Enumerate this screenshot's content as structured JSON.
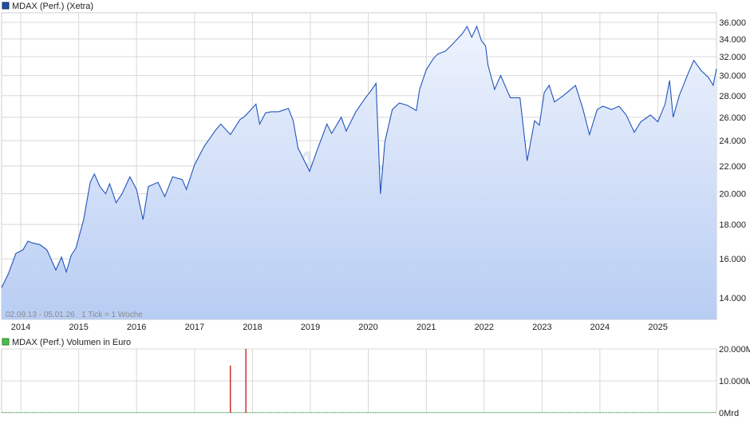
{
  "colors": {
    "price_line": "#2255bb",
    "area_top": "#eef3fd",
    "area_bottom": "#b8cdf3",
    "grid": "#d8d8d8",
    "volume_bar": "#cc2222",
    "volume_base": "#33aa33",
    "legend_price_box": "#1f4f9e",
    "legend_volume_box": "#4cbb4c",
    "watermark": "#c9d6ea"
  },
  "chart_data": [
    {
      "type": "area",
      "title": "MDAX (Perf.) (Xetra)",
      "caption": "02.09.13 - 05.01.26   1 Tick = 1 Woche",
      "watermark": "ARIVA.DE",
      "x_range": [
        "2013-09-02",
        "2026-01-05"
      ],
      "year_labels": [
        "2014",
        "2015",
        "2016",
        "2017",
        "2018",
        "2019",
        "2020",
        "2021",
        "2022",
        "2023",
        "2024",
        "2025"
      ],
      "y_ticks": [
        "14.000",
        "16.000",
        "18.000",
        "20.000",
        "22.000",
        "24.000",
        "26.000",
        "28.000",
        "30.000",
        "32.000",
        "34.000",
        "36.000"
      ],
      "y_tick_values": [
        14000,
        16000,
        18000,
        20000,
        22000,
        24000,
        26000,
        28000,
        30000,
        32000,
        34000,
        36000
      ],
      "ylim": [
        13000,
        37200
      ],
      "log_scale": true,
      "grid": true,
      "legend_placement": "top-left",
      "series": [
        {
          "name": "MDAX (Perf.) (Xetra)",
          "x": [
            "2013-09-02",
            "2013-10-15",
            "2013-12-01",
            "2014-01-15",
            "2014-02-15",
            "2014-03-15",
            "2014-05-01",
            "2014-06-15",
            "2014-08-10",
            "2014-09-15",
            "2014-10-15",
            "2014-11-15",
            "2014-12-15",
            "2015-02-01",
            "2015-03-15",
            "2015-04-10",
            "2015-05-15",
            "2015-06-20",
            "2015-07-15",
            "2015-08-25",
            "2015-10-01",
            "2015-11-20",
            "2016-01-01",
            "2016-02-11",
            "2016-03-15",
            "2016-05-15",
            "2016-06-27",
            "2016-08-15",
            "2016-10-15",
            "2016-11-10",
            "2017-01-01",
            "2017-03-01",
            "2017-05-15",
            "2017-06-15",
            "2017-08-15",
            "2017-10-15",
            "2017-11-15",
            "2018-01-23",
            "2018-02-15",
            "2018-03-25",
            "2018-05-01",
            "2018-06-15",
            "2018-08-15",
            "2018-09-15",
            "2018-10-15",
            "2018-12-27",
            "2019-02-15",
            "2019-04-15",
            "2019-05-15",
            "2019-07-15",
            "2019-08-15",
            "2019-10-15",
            "2019-12-15",
            "2020-01-15",
            "2020-02-19",
            "2020-03-18",
            "2020-04-15",
            "2020-06-01",
            "2020-07-15",
            "2020-09-01",
            "2020-10-30",
            "2020-11-20",
            "2021-01-01",
            "2021-02-15",
            "2021-03-15",
            "2021-05-01",
            "2021-06-15",
            "2021-08-15",
            "2021-09-15",
            "2021-10-15",
            "2021-11-15",
            "2021-12-15",
            "2022-01-10",
            "2022-01-25",
            "2022-03-08",
            "2022-04-15",
            "2022-06-15",
            "2022-08-15",
            "2022-09-29",
            "2022-11-15",
            "2022-12-15",
            "2023-01-15",
            "2023-02-15",
            "2023-03-20",
            "2023-05-15",
            "2023-07-31",
            "2023-09-15",
            "2023-10-27",
            "2023-12-15",
            "2024-01-20",
            "2024-03-15",
            "2024-04-30",
            "2024-06-15",
            "2024-08-05",
            "2024-09-15",
            "2024-11-15",
            "2024-12-31",
            "2025-02-15",
            "2025-03-15",
            "2025-04-07",
            "2025-05-15",
            "2025-07-15",
            "2025-08-15",
            "2025-10-01",
            "2025-11-15",
            "2025-12-15",
            "2026-01-05"
          ],
          "values": [
            14500,
            15200,
            16300,
            16500,
            17000,
            16900,
            16800,
            16500,
            15400,
            16100,
            15300,
            16200,
            16600,
            18300,
            20800,
            21400,
            20500,
            20000,
            20700,
            19400,
            20000,
            21200,
            20300,
            18300,
            20500,
            20800,
            19800,
            21200,
            21000,
            20300,
            22100,
            23500,
            24900,
            25400,
            24500,
            25800,
            26100,
            27200,
            25400,
            26400,
            26500,
            26500,
            26800,
            25700,
            23400,
            21600,
            23300,
            25400,
            24600,
            26000,
            24800,
            26500,
            27800,
            28400,
            29200,
            20000,
            23900,
            26700,
            27300,
            27100,
            26600,
            28600,
            30600,
            31800,
            32300,
            32600,
            33400,
            34600,
            35500,
            34200,
            35500,
            33800,
            33200,
            31100,
            28600,
            30000,
            27800,
            27800,
            22400,
            25700,
            25300,
            28300,
            29000,
            27400,
            28000,
            29000,
            26800,
            24500,
            26700,
            27000,
            26700,
            27000,
            26200,
            24700,
            25600,
            26200,
            25600,
            27200,
            29500,
            26000,
            28000,
            30400,
            31600,
            30500,
            29800,
            29000,
            30700
          ]
        }
      ]
    },
    {
      "type": "bar",
      "title": "MDAX (Perf.) Volumen in Euro",
      "y_ticks": [
        "0Mrd",
        "10.000M",
        "20.000M"
      ],
      "y_tick_values": [
        0,
        10000,
        20000
      ],
      "ylim": [
        0,
        20000
      ],
      "grid": true,
      "legend_placement": "top-left",
      "series": [
        {
          "name": "MDAX (Perf.) Volumen in Euro",
          "x": [
            "2017-08-14",
            "2017-11-20"
          ],
          "values": [
            14800,
            20500
          ]
        }
      ]
    }
  ]
}
